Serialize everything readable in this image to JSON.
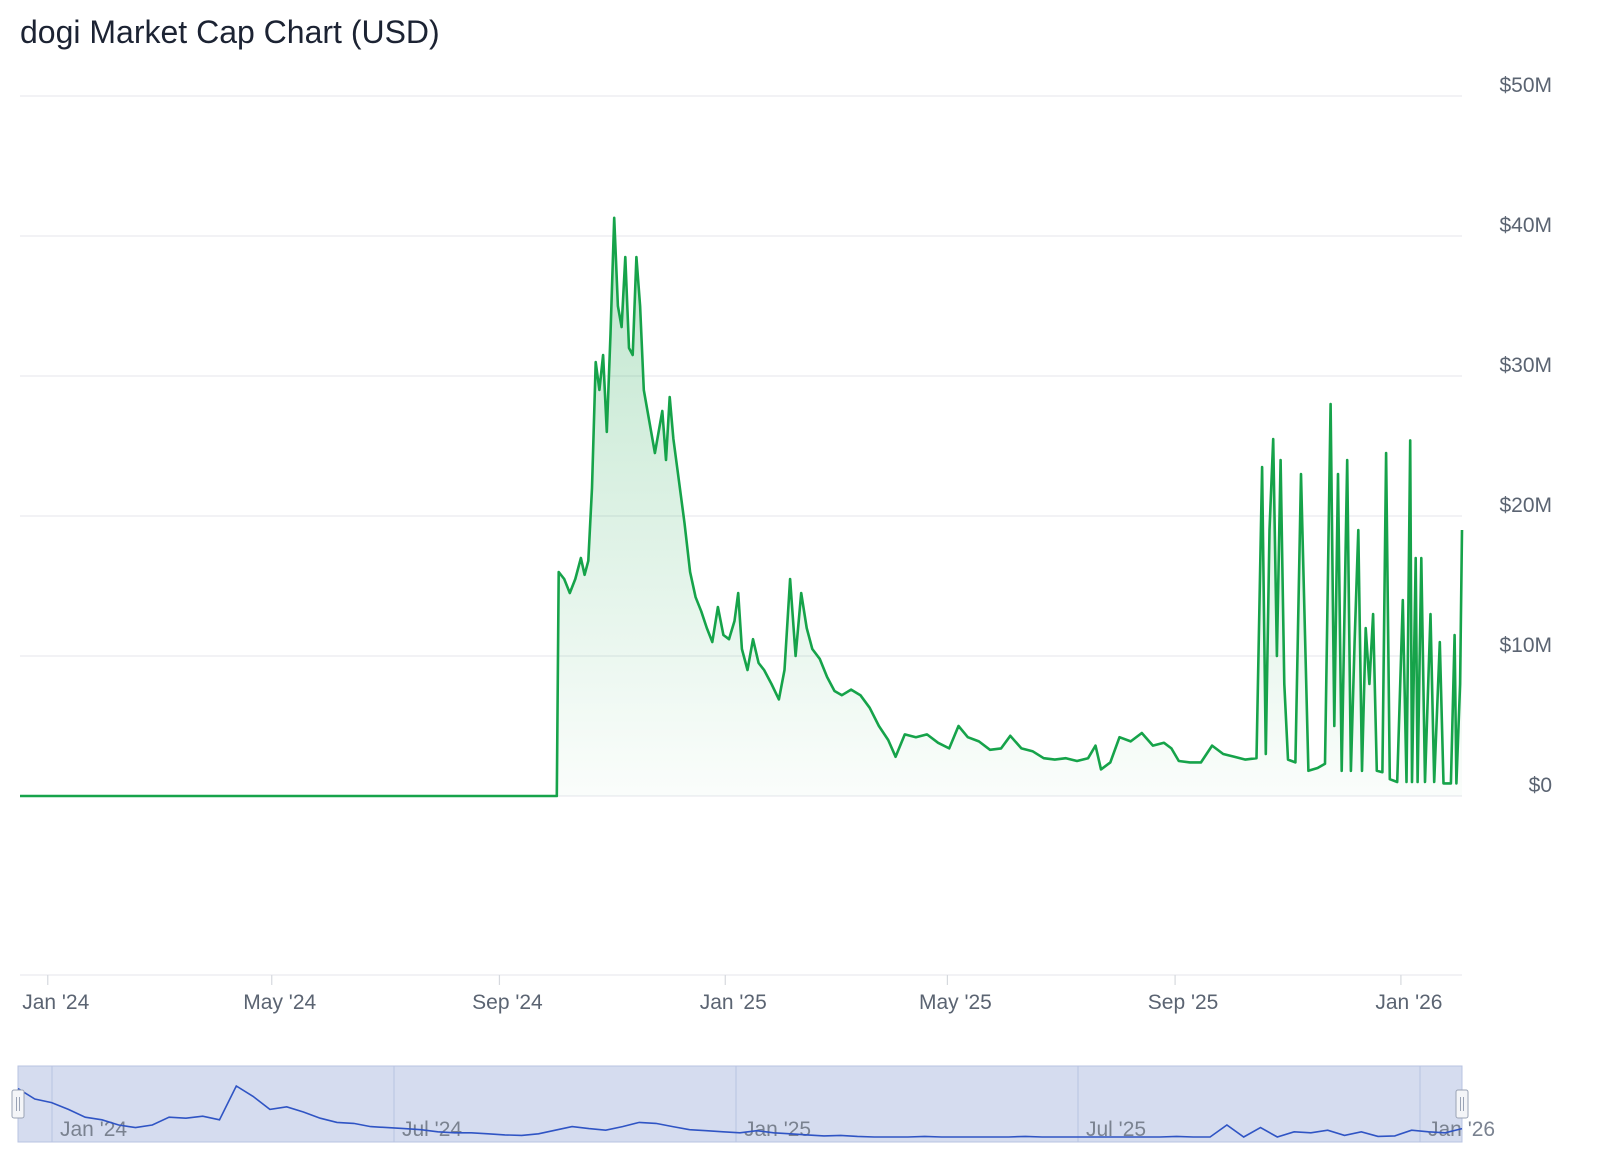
{
  "colors": {
    "line": "#16a34a",
    "fill_top": "#16a34a",
    "grid": "#e9ebef",
    "axis_text": "#5b6472",
    "navigator_fill": "#d5dcef",
    "navigator_line": "#2f54c4",
    "navigator_border": "#b8c3e2"
  },
  "chart_data": {
    "type": "area",
    "title": "dogi Market Cap Chart (USD)",
    "xlabel": "",
    "ylabel": "",
    "ylim": [
      0,
      50000000
    ],
    "xlim": [
      "2023-12-17",
      "2026-02-03"
    ],
    "y_ticks": [
      "$0",
      "$10M",
      "$20M",
      "$30M",
      "$40M",
      "$50M"
    ],
    "y_tick_values": [
      0,
      10000000,
      20000000,
      30000000,
      40000000,
      50000000
    ],
    "x_ticks": [
      "Jan '24",
      "May '24",
      "Sep '24",
      "Jan '25",
      "May '25",
      "Sep '25",
      "Jan '26"
    ],
    "x_tick_dates": [
      "2024-01-01",
      "2024-05-01",
      "2024-09-01",
      "2025-01-01",
      "2025-05-01",
      "2025-09-01",
      "2026-01-01"
    ],
    "grid": true,
    "legend": "none",
    "series": [
      {
        "unit": "USD",
        "points": [
          [
            "2023-12-17",
            0
          ],
          [
            "2024-10-02",
            0
          ],
          [
            "2024-10-03",
            16000000
          ],
          [
            "2024-10-06",
            15500000
          ],
          [
            "2024-10-09",
            14500000
          ],
          [
            "2024-10-12",
            15500000
          ],
          [
            "2024-10-15",
            17000000
          ],
          [
            "2024-10-17",
            15800000
          ],
          [
            "2024-10-19",
            16800000
          ],
          [
            "2024-10-21",
            22000000
          ],
          [
            "2024-10-23",
            31000000
          ],
          [
            "2024-10-25",
            29000000
          ],
          [
            "2024-10-27",
            31500000
          ],
          [
            "2024-10-29",
            26000000
          ],
          [
            "2024-10-31",
            33000000
          ],
          [
            "2024-11-02",
            41300000
          ],
          [
            "2024-11-04",
            35000000
          ],
          [
            "2024-11-06",
            33500000
          ],
          [
            "2024-11-08",
            38500000
          ],
          [
            "2024-11-10",
            32000000
          ],
          [
            "2024-11-12",
            31500000
          ],
          [
            "2024-11-14",
            38500000
          ],
          [
            "2024-11-16",
            35000000
          ],
          [
            "2024-11-18",
            29000000
          ],
          [
            "2024-11-20",
            27500000
          ],
          [
            "2024-11-22",
            26000000
          ],
          [
            "2024-11-24",
            24500000
          ],
          [
            "2024-11-26",
            26000000
          ],
          [
            "2024-11-28",
            27500000
          ],
          [
            "2024-11-30",
            24000000
          ],
          [
            "2024-12-02",
            28500000
          ],
          [
            "2024-12-04",
            25500000
          ],
          [
            "2024-12-06",
            23500000
          ],
          [
            "2024-12-08",
            21500000
          ],
          [
            "2024-12-10",
            19500000
          ],
          [
            "2024-12-13",
            16000000
          ],
          [
            "2024-12-16",
            14200000
          ],
          [
            "2024-12-19",
            13200000
          ],
          [
            "2024-12-22",
            12000000
          ],
          [
            "2024-12-25",
            11000000
          ],
          [
            "2024-12-28",
            13500000
          ],
          [
            "2024-12-31",
            11500000
          ],
          [
            "2025-01-03",
            11200000
          ],
          [
            "2025-01-06",
            12500000
          ],
          [
            "2025-01-08",
            14500000
          ],
          [
            "2025-01-10",
            10500000
          ],
          [
            "2025-01-13",
            9000000
          ],
          [
            "2025-01-16",
            11200000
          ],
          [
            "2025-01-19",
            9500000
          ],
          [
            "2025-01-22",
            9000000
          ],
          [
            "2025-01-26",
            8000000
          ],
          [
            "2025-01-30",
            6900000
          ],
          [
            "2025-02-02",
            9000000
          ],
          [
            "2025-02-05",
            15500000
          ],
          [
            "2025-02-08",
            10000000
          ],
          [
            "2025-02-11",
            14500000
          ],
          [
            "2025-02-14",
            12000000
          ],
          [
            "2025-02-17",
            10500000
          ],
          [
            "2025-02-21",
            9800000
          ],
          [
            "2025-02-25",
            8500000
          ],
          [
            "2025-03-01",
            7500000
          ],
          [
            "2025-03-05",
            7200000
          ],
          [
            "2025-03-10",
            7600000
          ],
          [
            "2025-03-15",
            7200000
          ],
          [
            "2025-03-20",
            6300000
          ],
          [
            "2025-03-25",
            5000000
          ],
          [
            "2025-03-30",
            4000000
          ],
          [
            "2025-04-03",
            2800000
          ],
          [
            "2025-04-08",
            4400000
          ],
          [
            "2025-04-14",
            4200000
          ],
          [
            "2025-04-20",
            4400000
          ],
          [
            "2025-04-26",
            3800000
          ],
          [
            "2025-05-02",
            3400000
          ],
          [
            "2025-05-07",
            5000000
          ],
          [
            "2025-05-12",
            4200000
          ],
          [
            "2025-05-18",
            3900000
          ],
          [
            "2025-05-24",
            3300000
          ],
          [
            "2025-05-30",
            3400000
          ],
          [
            "2025-06-04",
            4300000
          ],
          [
            "2025-06-10",
            3400000
          ],
          [
            "2025-06-16",
            3200000
          ],
          [
            "2025-06-22",
            2700000
          ],
          [
            "2025-06-28",
            2600000
          ],
          [
            "2025-07-04",
            2700000
          ],
          [
            "2025-07-10",
            2500000
          ],
          [
            "2025-07-16",
            2700000
          ],
          [
            "2025-07-20",
            3600000
          ],
          [
            "2025-07-23",
            1900000
          ],
          [
            "2025-07-28",
            2400000
          ],
          [
            "2025-08-02",
            4200000
          ],
          [
            "2025-08-08",
            3900000
          ],
          [
            "2025-08-14",
            4500000
          ],
          [
            "2025-08-20",
            3600000
          ],
          [
            "2025-08-26",
            3800000
          ],
          [
            "2025-08-30",
            3400000
          ],
          [
            "2025-09-03",
            2500000
          ],
          [
            "2025-09-09",
            2400000
          ],
          [
            "2025-09-15",
            2400000
          ],
          [
            "2025-09-21",
            3600000
          ],
          [
            "2025-09-27",
            3000000
          ],
          [
            "2025-10-03",
            2800000
          ],
          [
            "2025-10-09",
            2600000
          ],
          [
            "2025-10-15",
            2700000
          ],
          [
            "2025-10-18",
            23500000
          ],
          [
            "2025-10-20",
            3000000
          ],
          [
            "2025-10-22",
            19000000
          ],
          [
            "2025-10-24",
            25500000
          ],
          [
            "2025-10-26",
            10000000
          ],
          [
            "2025-10-28",
            24000000
          ],
          [
            "2025-10-30",
            8000000
          ],
          [
            "2025-11-01",
            2600000
          ],
          [
            "2025-11-05",
            2400000
          ],
          [
            "2025-11-08",
            23000000
          ],
          [
            "2025-11-12",
            1800000
          ],
          [
            "2025-11-17",
            2000000
          ],
          [
            "2025-11-21",
            2300000
          ],
          [
            "2025-11-24",
            28000000
          ],
          [
            "2025-11-26",
            5000000
          ],
          [
            "2025-11-28",
            23000000
          ],
          [
            "2025-11-30",
            1800000
          ],
          [
            "2025-12-03",
            24000000
          ],
          [
            "2025-12-05",
            1800000
          ],
          [
            "2025-12-07",
            11000000
          ],
          [
            "2025-12-09",
            19000000
          ],
          [
            "2025-12-11",
            1800000
          ],
          [
            "2025-12-13",
            12000000
          ],
          [
            "2025-12-15",
            8000000
          ],
          [
            "2025-12-17",
            13000000
          ],
          [
            "2025-12-19",
            1800000
          ],
          [
            "2025-12-22",
            1700000
          ],
          [
            "2025-12-24",
            24500000
          ],
          [
            "2025-12-26",
            1200000
          ],
          [
            "2025-12-30",
            1000000
          ],
          [
            "2026-01-02",
            14000000
          ],
          [
            "2026-01-04",
            1000000
          ],
          [
            "2026-01-06",
            25400000
          ],
          [
            "2026-01-07",
            1000000
          ],
          [
            "2026-01-09",
            17000000
          ],
          [
            "2026-01-10",
            1000000
          ],
          [
            "2026-01-12",
            17000000
          ],
          [
            "2026-01-14",
            1000000
          ],
          [
            "2026-01-17",
            13000000
          ],
          [
            "2026-01-19",
            1000000
          ],
          [
            "2026-01-22",
            11000000
          ],
          [
            "2026-01-24",
            900000
          ],
          [
            "2026-01-28",
            900000
          ],
          [
            "2026-01-30",
            11500000
          ],
          [
            "2026-01-31",
            900000
          ],
          [
            "2026-02-02",
            8000000
          ],
          [
            "2026-02-03",
            19000000
          ]
        ]
      }
    ],
    "navigator": {
      "x_ticks": [
        "Jan '24",
        "Jul '24",
        "Jan '25",
        "Jul '25",
        "Jan '26"
      ],
      "values": [
        0.95,
        0.75,
        0.68,
        0.55,
        0.4,
        0.35,
        0.25,
        0.2,
        0.25,
        0.4,
        0.38,
        0.42,
        0.35,
        1.0,
        0.8,
        0.55,
        0.6,
        0.5,
        0.38,
        0.3,
        0.28,
        0.22,
        0.2,
        0.18,
        0.16,
        0.12,
        0.1,
        0.1,
        0.08,
        0.06,
        0.05,
        0.08,
        0.15,
        0.22,
        0.18,
        0.15,
        0.22,
        0.3,
        0.28,
        0.22,
        0.16,
        0.14,
        0.12,
        0.1,
        0.14,
        0.1,
        0.08,
        0.06,
        0.04,
        0.05,
        0.03,
        0.02,
        0.02,
        0.02,
        0.03,
        0.02,
        0.02,
        0.02,
        0.02,
        0.02,
        0.03,
        0.02,
        0.02,
        0.02,
        0.02,
        0.02,
        0.02,
        0.02,
        0.02,
        0.03,
        0.02,
        0.02,
        0.25,
        0.02,
        0.2,
        0.02,
        0.12,
        0.1,
        0.15,
        0.05,
        0.12,
        0.03,
        0.04,
        0.15,
        0.12,
        0.1,
        0.18
      ]
    }
  }
}
